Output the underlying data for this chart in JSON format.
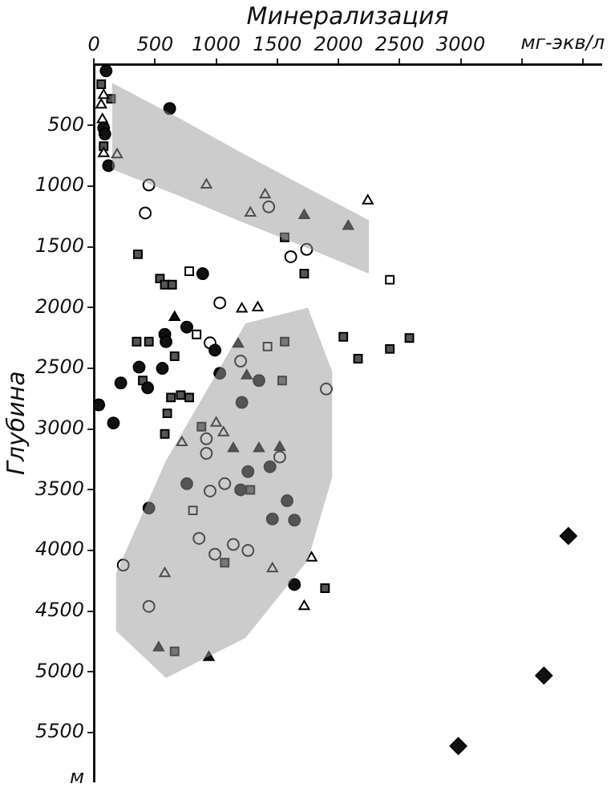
{
  "chart_data": {
    "type": "scatter",
    "xlabel": "Минерализация",
    "ylabel": "Глубина",
    "annotations": [
      "мг-экв/л",
      "м"
    ],
    "xlim": [
      0,
      4150
    ],
    "xticks": [
      0,
      500,
      1000,
      1500,
      2000,
      2500,
      3000,
      {
        "value": 3500,
        "label": null
      },
      {
        "value": 4000,
        "label": null
      }
    ],
    "ylim": [
      5900,
      0
    ],
    "yticks": [
      500,
      1000,
      1500,
      2000,
      2500,
      3000,
      3500,
      4000,
      4500,
      5000,
      5500
    ],
    "grid": false,
    "legend": false,
    "series": [
      {
        "type": "line",
        "color": "#9a9a9a",
        "x": [
          150,
          700,
          1200,
          1700,
          2250
        ],
        "values": [
          null,
          null,
          null,
          null,
          null
        ],
        "upper": [
          150,
          440,
          720,
          990,
          1280
        ],
        "lower": [
          860,
          1080,
          1290,
          1490,
          1720
        ]
      },
      {
        "type": "line",
        "color": "#9a9a9a",
        "x": [
          180,
          590,
          1240,
          1750,
          1950
        ],
        "values": [
          null,
          null,
          null,
          null,
          null
        ],
        "upper": [
          4190,
          3260,
          2130,
          2000,
          2530
        ],
        "lower": [
          4660,
          5050,
          4720,
          4080,
          3390
        ]
      },
      {
        "marker": "circle",
        "color": "#111111",
        "x": [
          100,
          620,
          80,
          90,
          120,
          890,
          760,
          580,
          590,
          990,
          370,
          560,
          1030,
          1350,
          220,
          440,
          40,
          1210,
          160,
          1440,
          1260,
          760,
          1200,
          1580,
          450,
          1460,
          1640,
          1640
        ],
        "values": [
          50,
          360,
          520,
          570,
          830,
          1720,
          2160,
          2220,
          2280,
          2350,
          2490,
          2500,
          2540,
          2600,
          2620,
          2660,
          2800,
          2780,
          2950,
          3310,
          3350,
          3450,
          3500,
          3590,
          3650,
          3740,
          3750,
          4280
        ]
      },
      {
        "marker": "circle",
        "color": "#ffffff",
        "x": [
          450,
          420,
          1430,
          1740,
          1610,
          1030,
          950,
          1200,
          1900,
          920,
          1520,
          920,
          1070,
          950,
          860,
          990,
          1140,
          1260,
          240,
          450
        ],
        "values": [
          990,
          1220,
          1170,
          1520,
          1580,
          1960,
          2290,
          2440,
          2670,
          3080,
          3230,
          3200,
          3450,
          3510,
          3900,
          4030,
          3950,
          4000,
          4120,
          4460
        ]
      },
      {
        "marker": "triangle",
        "color": "#111111",
        "x": [
          1720,
          2080,
          660,
          1180,
          1250,
          1140,
          1350,
          1520,
          530,
          940
        ],
        "values": [
          1240,
          1330,
          2080,
          2300,
          2560,
          3160,
          3160,
          3150,
          4800,
          4880
        ]
      },
      {
        "marker": "triangle",
        "color": "#ffffff",
        "x": [
          80,
          60,
          70,
          80,
          190,
          920,
          1400,
          1280,
          2240,
          1210,
          1340,
          1000,
          1060,
          720,
          1780,
          1460,
          580,
          1720
        ],
        "values": [
          250,
          330,
          450,
          730,
          740,
          990,
          1070,
          1220,
          1120,
          2010,
          2000,
          2950,
          3030,
          3110,
          4060,
          4150,
          4190,
          4460
        ]
      },
      {
        "marker": "square",
        "color": "#555555",
        "x": [
          60,
          140,
          80,
          1560,
          360,
          1720,
          540,
          580,
          640,
          350,
          450,
          1560,
          2040,
          2580,
          2160,
          2420,
          660,
          1540,
          400,
          630,
          710,
          780,
          600,
          880,
          580,
          1280,
          1070,
          1890,
          660
        ],
        "values": [
          160,
          280,
          670,
          1420,
          1560,
          1720,
          1760,
          1810,
          1810,
          2280,
          2280,
          2280,
          2240,
          2250,
          2420,
          2340,
          2400,
          2600,
          2600,
          2740,
          2720,
          2740,
          2870,
          2980,
          3040,
          3500,
          4100,
          4310,
          4830
        ]
      },
      {
        "marker": "square",
        "color": "#ffffff",
        "x": [
          2420,
          780,
          840,
          1420,
          810
        ],
        "values": [
          1770,
          1700,
          2220,
          2320,
          3670
        ]
      },
      {
        "marker": "diamond",
        "color": "#111111",
        "x": [
          3880,
          3680,
          2980
        ],
        "values": [
          3880,
          5030,
          5610
        ]
      }
    ]
  }
}
